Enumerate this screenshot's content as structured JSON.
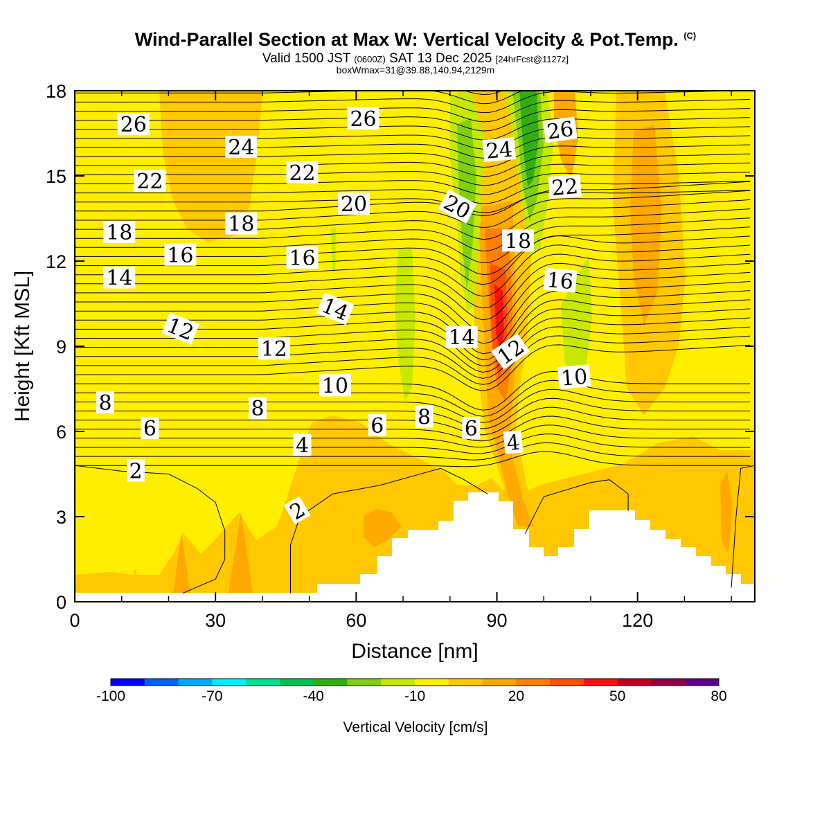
{
  "header": {
    "title_main": "Wind-Parallel Section at Max W: Vertical Velocity & Pot.Temp.",
    "title_copyright": "(C)",
    "valid_prefix": "Valid 1500 JST",
    "valid_utc": "(0600Z)",
    "valid_date": "SAT 13 Dec 2025",
    "valid_fcst": "[24hrFcst@1127z]",
    "box_info": "boxWmax=31@39.88,140.94,2129m"
  },
  "chart_data": {
    "type": "heatmap",
    "title": "Wind-Parallel Section at Max W: Vertical Velocity & Pot.Temp.",
    "xlabel": "Distance [nm]",
    "ylabel": "Height [Kft MSL]",
    "xlim": [
      0,
      145
    ],
    "ylim": [
      0,
      18
    ],
    "x_ticks": [
      "0",
      "30",
      "60",
      "90",
      "120"
    ],
    "y_ticks": [
      "0",
      "3",
      "6",
      "9",
      "12",
      "15",
      "18"
    ],
    "colorbar": {
      "title": "Vertical Velocity [cm/s]",
      "tick_labels": [
        "-100",
        "-70",
        "-40",
        "-10",
        "20",
        "50",
        "80"
      ],
      "colors": [
        "#0000ff",
        "#0060ff",
        "#00a8ff",
        "#00f0ff",
        "#00e090",
        "#00c050",
        "#30b010",
        "#80d010",
        "#c8e800",
        "#ffee00",
        "#ffc800",
        "#ffa800",
        "#ff8000",
        "#ff5000",
        "#ff1010",
        "#c00020",
        "#900040",
        "#600090"
      ]
    },
    "theta_labels": [
      {
        "text": "26",
        "x": 12.5,
        "y": 16.8,
        "rot": 0
      },
      {
        "text": "26",
        "x": 61.5,
        "y": 17.0,
        "rot": 0
      },
      {
        "text": "26",
        "x": 103.5,
        "y": 16.6,
        "rot": -8
      },
      {
        "text": "24",
        "x": 35.5,
        "y": 16.0,
        "rot": 0
      },
      {
        "text": "24",
        "x": 90.5,
        "y": 15.9,
        "rot": -5
      },
      {
        "text": "22",
        "x": 16.0,
        "y": 14.8,
        "rot": 0
      },
      {
        "text": "22",
        "x": 48.5,
        "y": 15.1,
        "rot": 0
      },
      {
        "text": "22",
        "x": 104.5,
        "y": 14.6,
        "rot": -5
      },
      {
        "text": "20",
        "x": 59.5,
        "y": 14.0,
        "rot": 0
      },
      {
        "text": "20",
        "x": 81.5,
        "y": 13.9,
        "rot": 28
      },
      {
        "text": "18",
        "x": 9.5,
        "y": 13.0,
        "rot": 0
      },
      {
        "text": "18",
        "x": 35.5,
        "y": 13.3,
        "rot": 0
      },
      {
        "text": "18",
        "x": 94.5,
        "y": 12.7,
        "rot": 0
      },
      {
        "text": "16",
        "x": 22.5,
        "y": 12.2,
        "rot": 0
      },
      {
        "text": "16",
        "x": 48.5,
        "y": 12.1,
        "rot": 0
      },
      {
        "text": "16",
        "x": 103.5,
        "y": 11.3,
        "rot": 5
      },
      {
        "text": "14",
        "x": 9.5,
        "y": 11.4,
        "rot": 0
      },
      {
        "text": "14",
        "x": 55.5,
        "y": 10.3,
        "rot": 22
      },
      {
        "text": "14",
        "x": 82.5,
        "y": 9.3,
        "rot": 0
      },
      {
        "text": "12",
        "x": 22.5,
        "y": 9.6,
        "rot": 22
      },
      {
        "text": "12",
        "x": 42.5,
        "y": 8.9,
        "rot": 0
      },
      {
        "text": "12",
        "x": 93.0,
        "y": 8.8,
        "rot": -35
      },
      {
        "text": "10",
        "x": 55.5,
        "y": 7.6,
        "rot": 0
      },
      {
        "text": "10",
        "x": 106.5,
        "y": 7.9,
        "rot": -5
      },
      {
        "text": "8",
        "x": 6.5,
        "y": 7.0,
        "rot": 0
      },
      {
        "text": "8",
        "x": 39.0,
        "y": 6.8,
        "rot": 0
      },
      {
        "text": "8",
        "x": 74.5,
        "y": 6.5,
        "rot": 0
      },
      {
        "text": "6",
        "x": 16.0,
        "y": 6.1,
        "rot": 0
      },
      {
        "text": "6",
        "x": 64.5,
        "y": 6.2,
        "rot": 0
      },
      {
        "text": "6",
        "x": 84.5,
        "y": 6.1,
        "rot": 0
      },
      {
        "text": "4",
        "x": 48.5,
        "y": 5.5,
        "rot": 0
      },
      {
        "text": "4",
        "x": 93.5,
        "y": 5.6,
        "rot": -5
      },
      {
        "text": "2",
        "x": 13.0,
        "y": 4.6,
        "rot": 0
      },
      {
        "text": "2",
        "x": 47.5,
        "y": 3.2,
        "rot": -30
      }
    ]
  }
}
